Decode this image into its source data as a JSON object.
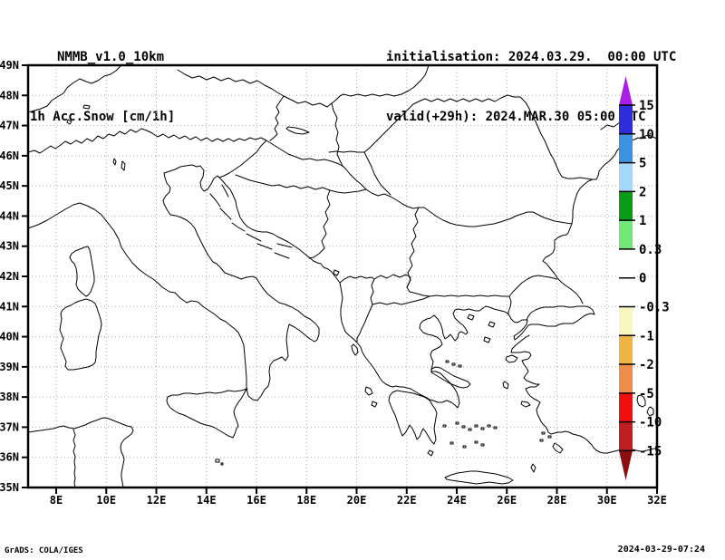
{
  "header": {
    "model": "NMMB_v1.0_10km",
    "field": "1h Acc.Snow [cm/1h]",
    "init_line": "initialisation: 2024.03.29.  00:00 UTC",
    "valid_line": "valid(+29h): 2024.MAR.30 05:00 UTC"
  },
  "map": {
    "lat_ticks": [
      {
        "value": 49,
        "label": "49N"
      },
      {
        "value": 48,
        "label": "48N"
      },
      {
        "value": 47,
        "label": "47N"
      },
      {
        "value": 46,
        "label": "46N"
      },
      {
        "value": 45,
        "label": "45N"
      },
      {
        "value": 44,
        "label": "44N"
      },
      {
        "value": 43,
        "label": "43N"
      },
      {
        "value": 42,
        "label": "42N"
      },
      {
        "value": 41,
        "label": "41N"
      },
      {
        "value": 40,
        "label": "40N"
      },
      {
        "value": 39,
        "label": "39N"
      },
      {
        "value": 38,
        "label": "38N"
      },
      {
        "value": 37,
        "label": "37N"
      },
      {
        "value": 36,
        "label": "36N"
      },
      {
        "value": 35,
        "label": "35N"
      }
    ],
    "lon_ticks": [
      {
        "value": 8,
        "label": "8E"
      },
      {
        "value": 10,
        "label": "10E"
      },
      {
        "value": 12,
        "label": "12E"
      },
      {
        "value": 14,
        "label": "14E"
      },
      {
        "value": 16,
        "label": "16E"
      },
      {
        "value": 18,
        "label": "18E"
      },
      {
        "value": 20,
        "label": "20E"
      },
      {
        "value": 22,
        "label": "22E"
      },
      {
        "value": 24,
        "label": "24E"
      },
      {
        "value": 26,
        "label": "26E"
      },
      {
        "value": 28,
        "label": "28E"
      },
      {
        "value": 30,
        "label": "30E"
      },
      {
        "value": 32,
        "label": "32E"
      }
    ],
    "grid": {
      "lon_step_deg": 2,
      "lat_step_deg": 1,
      "grid_color": "#aaaaaa"
    }
  },
  "colorbar": {
    "level_labels": [
      "15",
      "10",
      "5",
      "2",
      "1",
      "0.3",
      "0",
      "-0.3",
      "-1",
      "-2",
      "-5",
      "-10",
      "-15"
    ],
    "levels": [
      15,
      10,
      5,
      2,
      1,
      0.3,
      0,
      -0.3,
      -1,
      -2,
      -5,
      -10,
      -15
    ],
    "segment_colors": [
      "#2D2DDC",
      "#3C91E1",
      "#A5D7FA",
      "#0A9B19",
      "#73E678",
      "#FFFFFF",
      "#FFFFFF",
      "#FAF7BE",
      "#F0B441",
      "#F08C4B",
      "#EE0F0F",
      "#BE1E1E"
    ],
    "arrow_top_color": "#AA1EE6",
    "arrow_bottom_color": "#8C0F0F"
  },
  "footer": {
    "left": "GrADS: COLA/IGES",
    "right": "2024-03-29-07:24"
  }
}
